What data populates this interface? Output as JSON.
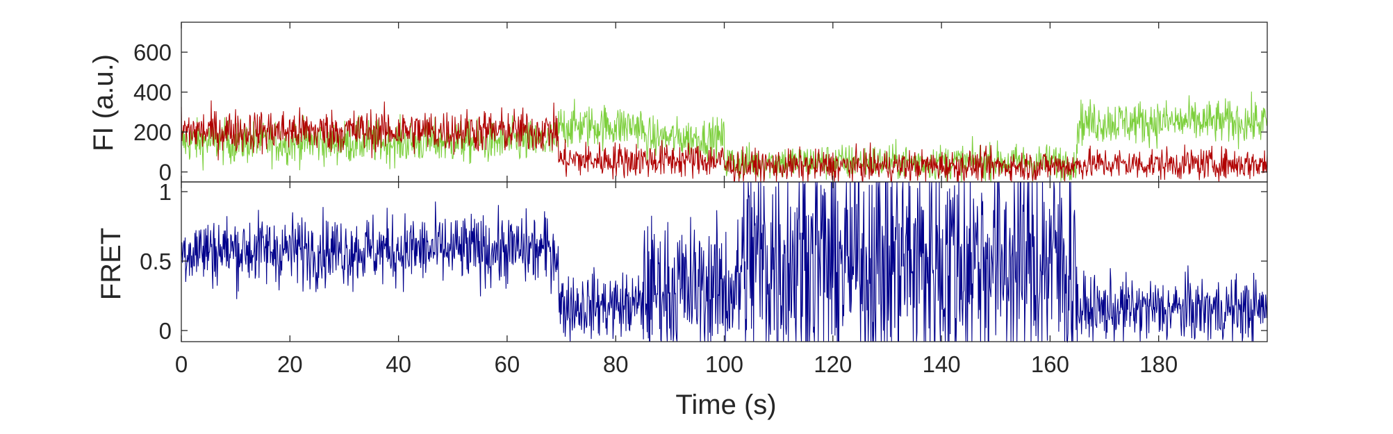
{
  "chart_data": [
    {
      "type": "line",
      "panel": "top",
      "title": "",
      "xlabel": "",
      "ylabel": "FI (a.u.)",
      "xlim": [
        0,
        200
      ],
      "ylim": [
        -50,
        750
      ],
      "x_ticks": [
        0,
        20,
        40,
        60,
        80,
        100,
        120,
        140,
        160,
        180
      ],
      "y_ticks": [
        0,
        200,
        400,
        600
      ],
      "y_tick_labels": [
        "0",
        "200",
        "400",
        "600"
      ],
      "grid": false,
      "legend": "none",
      "sampling_interval_s": 0.1,
      "series": [
        {
          "color": "#7ccf3c",
          "segments": [
            {
              "t0": 0,
              "t1": 69.5,
              "mean": 150,
              "noise": 55
            },
            {
              "t0": 69.5,
              "t1": 85,
              "mean": 230,
              "noise": 55
            },
            {
              "t0": 85,
              "t1": 100,
              "mean": 170,
              "noise": 50
            },
            {
              "t0": 100,
              "t1": 165,
              "mean": 50,
              "noise": 45
            },
            {
              "t0": 165,
              "t1": 200,
              "mean": 250,
              "noise": 55
            }
          ]
        },
        {
          "color": "#b00000",
          "segments": [
            {
              "t0": 0,
              "t1": 69.5,
              "mean": 205,
              "noise": 55
            },
            {
              "t0": 69.5,
              "t1": 100,
              "mean": 60,
              "noise": 45
            },
            {
              "t0": 100,
              "t1": 165,
              "mean": 30,
              "noise": 40
            },
            {
              "t0": 165,
              "t1": 200,
              "mean": 40,
              "noise": 40
            }
          ]
        }
      ]
    },
    {
      "type": "line",
      "panel": "bottom",
      "title": "",
      "xlabel": "Time (s)",
      "ylabel": "FRET",
      "xlim": [
        0,
        200
      ],
      "ylim": [
        -0.08,
        1.07
      ],
      "x_ticks": [
        0,
        20,
        40,
        60,
        80,
        100,
        120,
        140,
        160,
        180
      ],
      "x_tick_labels": [
        "0",
        "20",
        "40",
        "60",
        "80",
        "100",
        "120",
        "140",
        "160",
        "180"
      ],
      "y_ticks": [
        0,
        0.5,
        1
      ],
      "y_tick_labels": [
        "0",
        "0.5",
        "1"
      ],
      "grid": false,
      "legend": "none",
      "sampling_interval_s": 0.1,
      "series": [
        {
          "color": "#00008b",
          "segments": [
            {
              "t0": 0,
              "t1": 69.5,
              "mean": 0.58,
              "noise": 0.13
            },
            {
              "t0": 69.5,
              "t1": 85,
              "mean": 0.18,
              "noise": 0.12
            },
            {
              "t0": 85,
              "t1": 103,
              "mean": 0.3,
              "noise": 0.25
            },
            {
              "t0": 103,
              "t1": 165,
              "mean": 0.5,
              "noise": 0.45
            },
            {
              "t0": 165,
              "t1": 200,
              "mean": 0.15,
              "noise": 0.12
            }
          ]
        }
      ]
    }
  ]
}
